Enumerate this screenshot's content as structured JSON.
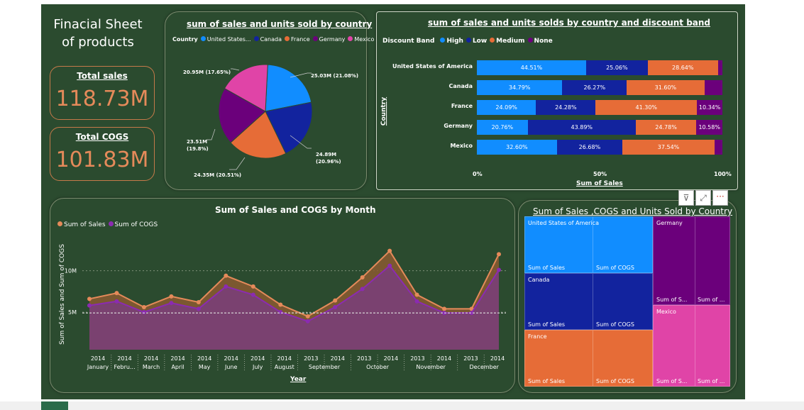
{
  "dashboard_title": "Finacial Sheet of products",
  "kpis": {
    "total_sales_label": "Total sales",
    "total_sales_value": "118.73M",
    "total_cogs_label": "Total COGS",
    "total_cogs_value": "101.83M"
  },
  "pie": {
    "title": "sum of sales and units sold by country",
    "legend_title": "Country",
    "legend": [
      "United States...",
      "Canada",
      "France",
      "Germany",
      "Mexico"
    ],
    "labels": [
      "25.03M (21.08%)",
      "24.89M (20.96%)",
      "24.35M (20.51%)",
      "23.51M (19.8%)",
      "20.95M (17.65%)"
    ]
  },
  "bar100": {
    "title": "sum of sales and units solds by country and discount band",
    "legend_title": "Discount Band",
    "legend": [
      "High",
      "Low",
      "Medium",
      "None"
    ],
    "y_axis_label": "Country",
    "x_axis_label": "Sum of Sales",
    "x_ticks": [
      "0%",
      "50%",
      "100%"
    ],
    "rows": [
      {
        "country": "United States of America",
        "labels": [
          "44.51%",
          "25.06%",
          "28.64%",
          ""
        ]
      },
      {
        "country": "Canada",
        "labels": [
          "34.79%",
          "26.27%",
          "31.60%",
          ""
        ]
      },
      {
        "country": "France",
        "labels": [
          "24.09%",
          "24.28%",
          "41.30%",
          "10.34%"
        ]
      },
      {
        "country": "Germany",
        "labels": [
          "20.76%",
          "43.89%",
          "24.78%",
          "10.58%"
        ]
      },
      {
        "country": "Mexico",
        "labels": [
          "32.60%",
          "26.68%",
          "37.54%",
          ""
        ]
      }
    ]
  },
  "line": {
    "title": "Sum of Sales and COGS by Month",
    "legend": [
      "Sum of  Sales",
      "Sum of COGS"
    ],
    "y_axis_label": "Sum of Sales and Sum of COGS",
    "x_axis_label": "Year",
    "y_ticks": [
      "10M",
      "5M"
    ],
    "x_years": [
      "2014",
      "2014",
      "2014",
      "2014",
      "2014",
      "2014",
      "2014",
      "2014",
      "2013",
      "2014",
      "2013",
      "2014",
      "2013",
      "2014",
      "2013",
      "2014"
    ],
    "x_months": [
      "January",
      "Febru...",
      "March",
      "April",
      "May",
      "June",
      "July",
      "August",
      "September",
      "",
      "October",
      "",
      "November",
      "",
      "December",
      ""
    ]
  },
  "treemap": {
    "title": "Sum of Sales ,COGS and Units Sold by Country",
    "cells": {
      "usa": "United States of America",
      "usa_a": "Sum of Sales",
      "usa_b": "Sum of COGS",
      "canada": "Canada",
      "canada_a": "Sum of Sales",
      "canada_b": "Sum of COGS",
      "france": "France",
      "france_a": "Sum of Sales",
      "france_b": "Sum of COGS",
      "germany": "Germany",
      "germany_a": "Sum of S...",
      "germany_b": "Sum of ...",
      "mexico": "Mexico",
      "mexico_a": "Sum of S...",
      "mexico_b": "Sum of ..."
    }
  },
  "chart_data": [
    {
      "type": "pie",
      "title": "sum of sales and units sold by country",
      "categories": [
        "United States of America",
        "Canada",
        "France",
        "Germany",
        "Mexico"
      ],
      "values": [
        25.03,
        24.89,
        24.35,
        23.51,
        20.95
      ],
      "percent": [
        21.08,
        20.96,
        20.51,
        19.8,
        17.65
      ],
      "colors": [
        "#118dff",
        "#12239e",
        "#e66c37",
        "#6b007b",
        "#e044a7"
      ]
    },
    {
      "type": "bar",
      "stacked_percent": true,
      "title": "sum of sales and units solds by country and discount band",
      "categories": [
        "United States of America",
        "Canada",
        "France",
        "Germany",
        "Mexico"
      ],
      "series": [
        {
          "name": "High",
          "values": [
            44.51,
            34.79,
            24.09,
            20.76,
            32.6
          ]
        },
        {
          "name": "Low",
          "values": [
            25.06,
            26.27,
            24.28,
            43.89,
            26.68
          ]
        },
        {
          "name": "Medium",
          "values": [
            28.64,
            31.6,
            41.3,
            24.78,
            37.54
          ]
        },
        {
          "name": "None",
          "values": [
            1.79,
            7.34,
            10.34,
            10.58,
            3.18
          ]
        }
      ],
      "colors": [
        "#118dff",
        "#12239e",
        "#e66c37",
        "#6b007b"
      ]
    },
    {
      "type": "area",
      "title": "Sum of Sales and COGS by Month",
      "series": [
        {
          "name": "Sum of  Sales",
          "values": [
            6.6,
            7.3,
            5.6,
            6.9,
            6.2,
            9.4,
            8.1,
            5.9,
            4.5,
            6.4,
            9.2,
            12.4,
            7.1,
            5.4,
            5.4,
            12.0
          ]
        },
        {
          "name": "Sum of COGS",
          "values": [
            5.8,
            6.3,
            5.0,
            6.1,
            5.4,
            8.1,
            7.1,
            5.0,
            3.9,
            5.6,
            7.8,
            10.6,
            6.3,
            4.9,
            4.9,
            10.1
          ]
        }
      ],
      "average_line": 4.9,
      "y_ticks": [
        5,
        10
      ],
      "ylim": [
        2,
        14
      ],
      "colors": [
        "#e58a5a",
        "#8b2bb1"
      ]
    }
  ]
}
